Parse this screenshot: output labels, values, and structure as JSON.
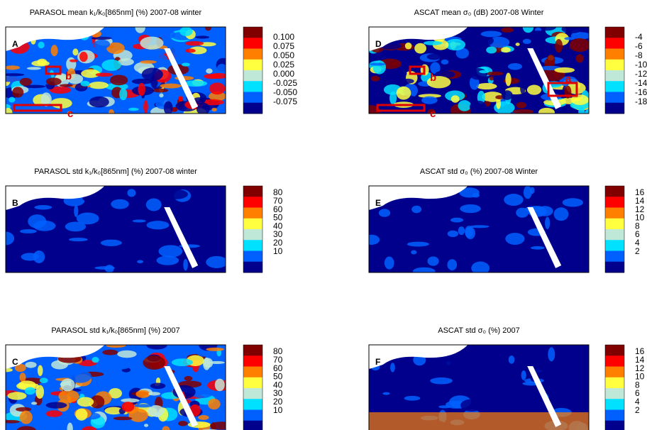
{
  "colorbar_colors": [
    "#800000",
    "#ff0000",
    "#ff8000",
    "#ffff40",
    "#c0e8d8",
    "#00e0ff",
    "#0060ff",
    "#00008c"
  ],
  "panels": [
    {
      "letter": "A",
      "title": "PARASOL mean k₁/k₀[865nm] (%) 2007-08 winter",
      "labels": [
        "0.100",
        "0.075",
        "0.050",
        "0.025",
        "0.000",
        "-0.025",
        "-0.050",
        "-0.075"
      ],
      "regions": [
        "b",
        "c"
      ]
    },
    {
      "letter": "D",
      "title": "ASCAT mean σ₀ (dB) 2007-08 Winter",
      "labels": [
        "-4",
        "-6",
        "-8",
        "-10",
        "-12",
        "-14",
        "-16",
        "-18"
      ],
      "regions": [
        "a",
        "b",
        "c"
      ]
    },
    {
      "letter": "B",
      "title": "PARASOL std k₁/k₀[865nm] (%) 2007-08 winter",
      "labels": [
        "80",
        "70",
        "60",
        "50",
        "40",
        "30",
        "20",
        "10"
      ]
    },
    {
      "letter": "E",
      "title": "ASCAT std σ₀ (%) 2007-08 Winter",
      "labels": [
        "16",
        "14",
        "12",
        "10",
        "8",
        "6",
        "4",
        "2"
      ]
    },
    {
      "letter": "C",
      "title": "PARASOL std k₁/k₀[865nm] (%) 2007",
      "labels": [
        "80",
        "70",
        "60",
        "50",
        "40",
        "30",
        "20",
        "10"
      ]
    },
    {
      "letter": "F",
      "title": "ASCAT std σ₀ (%) 2007",
      "labels": [
        "16",
        "14",
        "12",
        "10",
        "8",
        "6",
        "4",
        "2"
      ]
    }
  ]
}
